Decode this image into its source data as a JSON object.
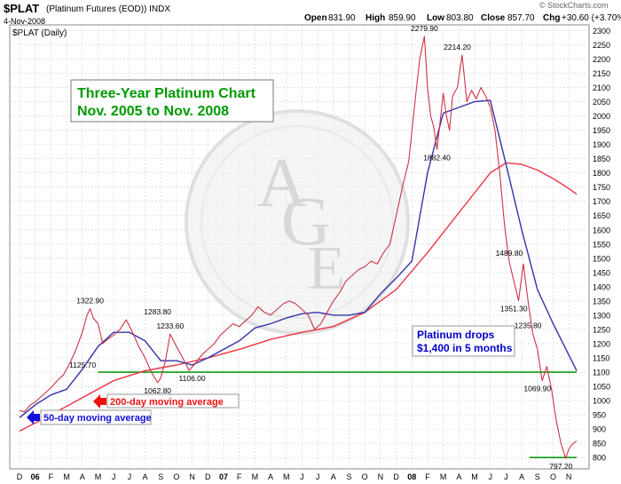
{
  "header": {
    "symbol": "$PLAT",
    "description": "(Platinum Futures (EOD))  INDX",
    "date": "4-Nov-2008",
    "series_label": "$PLAT (Daily)",
    "watermark": "© StockCharts.com",
    "quote": {
      "open_label": "Open",
      "open": "831.90",
      "high_label": "High",
      "high": "859.90",
      "low_label": "Low",
      "low": "803.80",
      "close_label": "Close",
      "close": "857.70",
      "chg_label": "Chg",
      "chg": "+30.60 (+3.70%)"
    }
  },
  "logo": {
    "letters": "AGE",
    "name": "ACE-logo-seal"
  },
  "colors": {
    "price": "#cc3344",
    "ma50": "#3333aa",
    "ma200": "#ee3344",
    "support": "#119911",
    "title_text": "#009900",
    "annotation_text": "#0000cc",
    "grid": "#cfcfcf"
  },
  "chart_data": {
    "type": "line",
    "title_line1": "Three-Year Platinum Chart",
    "title_line2": "Nov. 2005 to Nov. 2008",
    "xlabel": "",
    "ylabel": "",
    "ylim": [
      760,
      2320
    ],
    "y_ticks": [
      800,
      850,
      900,
      950,
      1000,
      1050,
      1100,
      1150,
      1200,
      1250,
      1300,
      1350,
      1400,
      1450,
      1500,
      1550,
      1600,
      1650,
      1700,
      1750,
      1800,
      1850,
      1900,
      1950,
      2000,
      2050,
      2100,
      2150,
      2200,
      2250,
      2300
    ],
    "month_labels": [
      "D",
      "06",
      "F",
      "M",
      "A",
      "M",
      "J",
      "J",
      "A",
      "S",
      "O",
      "N",
      "D",
      "07",
      "F",
      "M",
      "A",
      "M",
      "J",
      "J",
      "A",
      "S",
      "O",
      "N",
      "D",
      "08",
      "F",
      "M",
      "A",
      "M",
      "J",
      "J",
      "A",
      "S",
      "O",
      "N"
    ],
    "x_start_month": 0.0,
    "x_end_month": 35.5,
    "series": [
      {
        "key": "price",
        "x": [
          0,
          0.3,
          0.7,
          1.0,
          1.3,
          1.7,
          2.0,
          2.4,
          2.8,
          3.2,
          3.6,
          4.0,
          4.3,
          4.5,
          4.7,
          5.0,
          5.3,
          5.6,
          6.0,
          6.4,
          6.8,
          7.2,
          7.6,
          8.0,
          8.4,
          8.8,
          9.0,
          9.3,
          9.6,
          10.0,
          10.4,
          10.8,
          11.2,
          11.6,
          12.0,
          12.4,
          12.8,
          13.2,
          13.6,
          14.0,
          14.4,
          14.8,
          15.2,
          15.6,
          16.0,
          16.4,
          16.8,
          17.2,
          17.6,
          18.0,
          18.4,
          18.8,
          19.2,
          19.6,
          20.0,
          20.4,
          20.8,
          21.2,
          21.6,
          22.0,
          22.4,
          22.8,
          23.2,
          23.6,
          24.0,
          24.4,
          24.8,
          25.2,
          25.5,
          25.8,
          26.0,
          26.2,
          26.4,
          26.6,
          26.8,
          27.0,
          27.2,
          27.4,
          27.6,
          27.9,
          28.2,
          28.5,
          28.8,
          29.1,
          29.4,
          29.7,
          30.0,
          30.3,
          30.6,
          30.9,
          31.2,
          31.5,
          31.8,
          32.1,
          32.4,
          32.7,
          33.0,
          33.3,
          33.6,
          33.9,
          34.2,
          34.5,
          34.8,
          35.0,
          35.2,
          35.4,
          35.5
        ],
        "y": [
          965,
          960,
          985,
          995,
          1010,
          1030,
          1045,
          1070,
          1090,
          1130,
          1180,
          1240,
          1300,
          1322.9,
          1290,
          1270,
          1200,
          1215,
          1230,
          1250,
          1283.8,
          1240,
          1190,
          1150,
          1100,
          1062.8,
          1080,
          1140,
          1233.6,
          1190,
          1150,
          1106,
          1130,
          1160,
          1180,
          1200,
          1230,
          1250,
          1270,
          1260,
          1280,
          1300,
          1330,
          1310,
          1300,
          1320,
          1340,
          1350,
          1340,
          1320,
          1300,
          1250,
          1270,
          1310,
          1350,
          1380,
          1420,
          1440,
          1460,
          1470,
          1490,
          1480,
          1520,
          1550,
          1650,
          1750,
          1840,
          2050,
          2200,
          2279.9,
          2100,
          2000,
          1960,
          1882.4,
          1980,
          2080,
          2000,
          1950,
          2070,
          2100,
          2214.2,
          2050,
          2090,
          2060,
          2100,
          2070,
          2030,
          1950,
          1800,
          1620,
          1489.8,
          1420,
          1351.3,
          1480,
          1350,
          1235.8,
          1180,
          1069.9,
          1120,
          1040,
          930,
          850,
          797.2,
          830,
          845,
          855,
          857.7
        ]
      },
      {
        "key": "ma50",
        "x": [
          0,
          1,
          2,
          3,
          4,
          5,
          6,
          7,
          8,
          9,
          10,
          11,
          12,
          13,
          14,
          15,
          16,
          17,
          18,
          19,
          20,
          21,
          22,
          23,
          24,
          25,
          26,
          27,
          28,
          29,
          30,
          31,
          32,
          33,
          34,
          35,
          35.5
        ],
        "y": [
          940,
          985,
          1020,
          1040,
          1110,
          1190,
          1240,
          1240,
          1210,
          1140,
          1140,
          1125,
          1150,
          1180,
          1210,
          1255,
          1270,
          1290,
          1305,
          1310,
          1300,
          1300,
          1310,
          1375,
          1430,
          1490,
          1800,
          2010,
          2030,
          2050,
          2055,
          1830,
          1600,
          1390,
          1270,
          1160,
          1105
        ]
      },
      {
        "key": "ma200",
        "x": [
          0,
          2,
          4,
          6,
          8,
          10,
          12,
          14,
          16,
          18,
          20,
          22,
          24,
          26,
          28,
          30,
          31,
          32,
          33,
          34,
          35,
          35.5
        ],
        "y": [
          893,
          950,
          1010,
          1070,
          1105,
          1125,
          1150,
          1180,
          1215,
          1240,
          1260,
          1310,
          1390,
          1520,
          1660,
          1800,
          1835,
          1830,
          1810,
          1780,
          1745,
          1725
        ]
      }
    ],
    "point_labels": [
      {
        "x": 4.5,
        "y": 1322.9,
        "text": "1322.90",
        "pos": "above"
      },
      {
        "x": 8.8,
        "y": 1283.8,
        "text": "1283.80",
        "pos": "above"
      },
      {
        "x": 9.6,
        "y": 1233.6,
        "text": "1233.60",
        "pos": "above"
      },
      {
        "x": 5.1,
        "y": 1125.7,
        "text": "1125.70",
        "pos": "left"
      },
      {
        "x": 8.8,
        "y": 1062.8,
        "text": "1062.80",
        "pos": "below"
      },
      {
        "x": 11.0,
        "y": 1106,
        "text": "1106.00",
        "pos": "below"
      },
      {
        "x": 25.8,
        "y": 2279.9,
        "text": "2279.90",
        "pos": "above"
      },
      {
        "x": 27.9,
        "y": 2214.2,
        "text": "2214.20",
        "pos": "above"
      },
      {
        "x": 26.6,
        "y": 1882.4,
        "text": "1882.40",
        "pos": "below"
      },
      {
        "x": 31.2,
        "y": 1489.8,
        "text": "1489.80",
        "pos": "above"
      },
      {
        "x": 31.5,
        "y": 1351.3,
        "text": "1351.30",
        "pos": "below"
      },
      {
        "x": 32.4,
        "y": 1235.8,
        "text": "1235.80",
        "pos": "above"
      },
      {
        "x": 33.0,
        "y": 1069.9,
        "text": "1069.90",
        "pos": "below"
      },
      {
        "x": 34.5,
        "y": 797.2,
        "text": "797.20",
        "pos": "below"
      }
    ],
    "support_lines": [
      {
        "y": 1100,
        "x_from": 5.0,
        "x_to": 35.5
      },
      {
        "y": 800,
        "x_from": 32.5,
        "x_to": 35.5
      }
    ],
    "annotations": {
      "platinum_drops_line1": "Platinum drops",
      "platinum_drops_line2": "$1,400 in 5 months",
      "ma200_label": "200-day moving average",
      "ma50_label": "50-day moving average"
    }
  }
}
